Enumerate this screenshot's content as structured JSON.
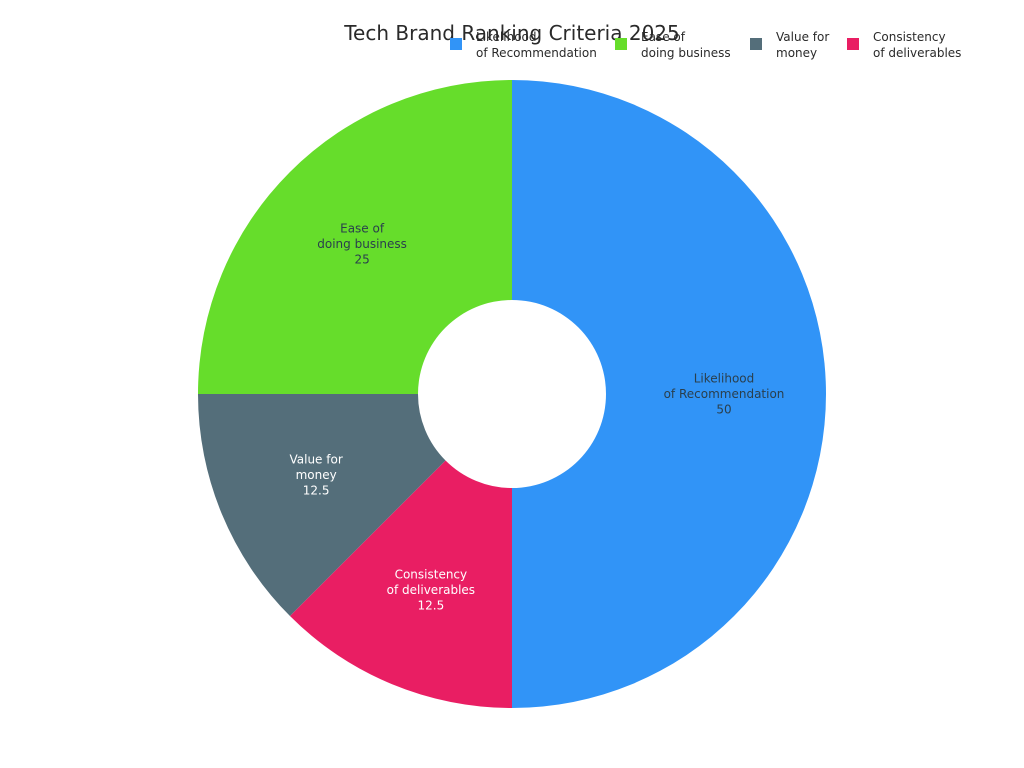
{
  "chart_data": {
    "type": "pie",
    "variant": "donut",
    "title": "Tech Brand Ranking Criteria 2025",
    "legend_position": "top-right",
    "slices": [
      {
        "label": "Likelihood\nof Recommendation",
        "value": 50,
        "color": "#3194f7",
        "label_color": "#2a3f4d"
      },
      {
        "label": "Consistency\nof deliverables",
        "value": 12.5,
        "color": "#e91e63",
        "label_color": "#ffffff"
      },
      {
        "label": "Value for\nmoney",
        "value": 12.5,
        "color": "#546e7a",
        "label_color": "#ffffff"
      },
      {
        "label": "Ease of\ndoing business",
        "value": 25,
        "color": "#66dd2b",
        "label_color": "#2a3f4d"
      }
    ],
    "legend": [
      {
        "label": "Likelihood\nof Recommendation",
        "color": "#3194f7"
      },
      {
        "label": "Ease of\ndoing business",
        "color": "#66dd2b"
      },
      {
        "label": "Value for\nmoney",
        "color": "#546e7a"
      },
      {
        "label": "Consistency\nof deliverables",
        "color": "#e91e63"
      }
    ]
  }
}
